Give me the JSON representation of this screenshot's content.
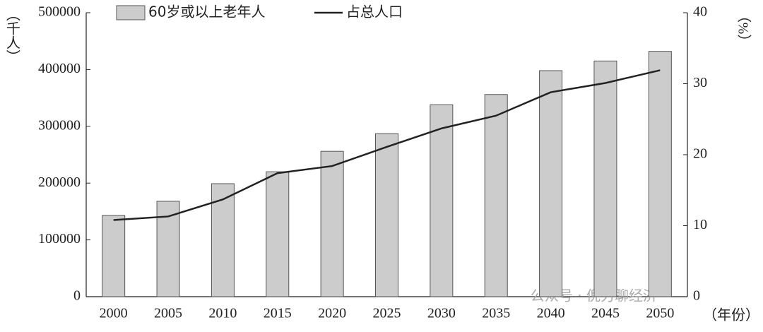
{
  "chart_data": {
    "type": "bar_line",
    "y_label": "（千人）",
    "y2_label": "（%）",
    "x_label": "（年份）",
    "watermark": "公众号 · 倪刃聊经济",
    "categories": [
      "2000",
      "2005",
      "2010",
      "2015",
      "2020",
      "2025",
      "2030",
      "2035",
      "2040",
      "2045",
      "2050"
    ],
    "series": [
      {
        "name": "60岁或以上老年人",
        "type": "bar",
        "color": "#cccccc",
        "values": [
          143000,
          168000,
          199000,
          220000,
          256000,
          287000,
          338000,
          356000,
          398000,
          415000,
          432000
        ]
      },
      {
        "name": "占总人口",
        "type": "line",
        "axis": "y2",
        "color": "#222222",
        "values": [
          10.8,
          11.3,
          13.7,
          17.4,
          18.4,
          21.1,
          23.7,
          25.5,
          28.8,
          30.1,
          31.9
        ]
      }
    ],
    "ylim": [
      0,
      500000
    ],
    "yticks": [
      0,
      100000,
      200000,
      300000,
      400000,
      500000
    ],
    "y2lim": [
      0,
      40
    ],
    "y2ticks": [
      0,
      10,
      20,
      30,
      40
    ]
  }
}
